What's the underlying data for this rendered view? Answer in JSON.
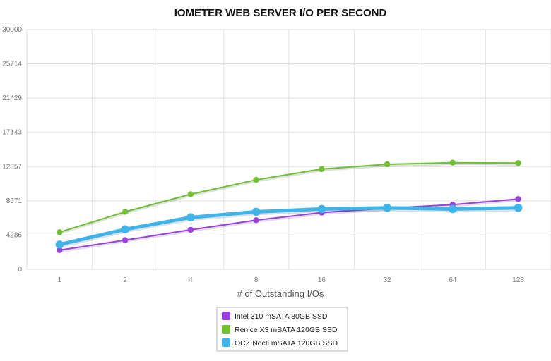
{
  "chart_data": {
    "type": "line",
    "title": "IOMETER WEB SERVER I/O PER SECOND",
    "xlabel": "# of Outstanding I/Os",
    "ylabel": "",
    "categories": [
      "1",
      "2",
      "4",
      "8",
      "16",
      "32",
      "64",
      "128"
    ],
    "yticks": [
      "0",
      "4286",
      "8571",
      "12857",
      "17143",
      "21429",
      "25714",
      "30000"
    ],
    "ylim": [
      0,
      30000
    ],
    "grid": true,
    "legend_position": "bottom-center",
    "series": [
      {
        "name": "Intel 310 mSATA 80GB SSD",
        "color": "#9b3fe0",
        "values": [
          2400,
          3650,
          4950,
          6150,
          7100,
          7650,
          8100,
          8800
        ]
      },
      {
        "name": "Renice X3 mSATA 120GB SSD",
        "color": "#6ec12f",
        "values": [
          4650,
          7200,
          9400,
          11200,
          12550,
          13150,
          13350,
          13300
        ]
      },
      {
        "name": "OCZ Nocti mSATA 120GB SSD",
        "color": "#3db4ea",
        "values": [
          3100,
          5000,
          6500,
          7200,
          7550,
          7700,
          7550,
          7700
        ]
      }
    ]
  }
}
